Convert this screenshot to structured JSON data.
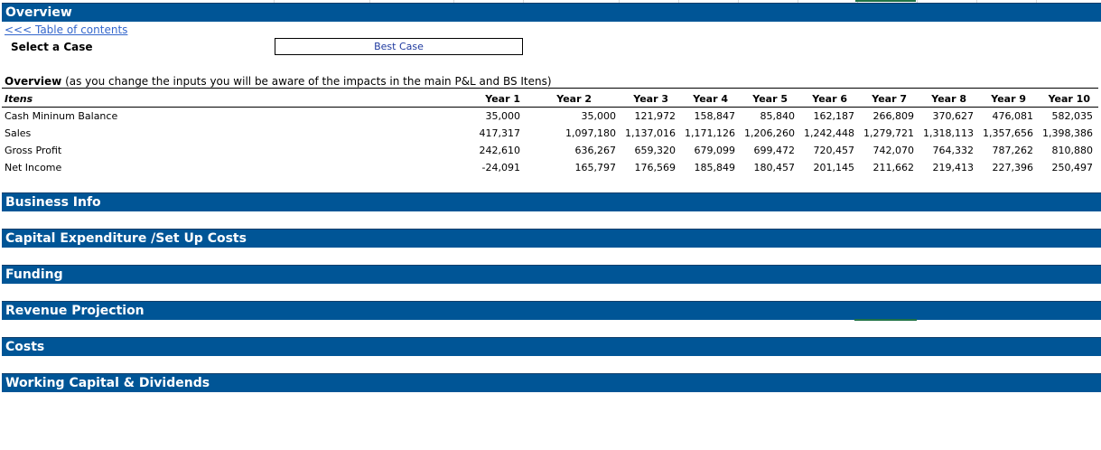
{
  "sections": {
    "overview": "Overview",
    "business_info": "Business Info",
    "capex": "Capital Expenditure /Set Up Costs",
    "funding": "Funding",
    "revenue": "Revenue Projection",
    "costs": "Costs",
    "working_capital": "Working Capital & Dividends"
  },
  "toc_link": "<<< Table of contents",
  "case": {
    "label": "Select a Case",
    "value": "Best Case"
  },
  "overview": {
    "title_bold": "Overview",
    "title_rest": " (as you change the inputs you will be aware of the impacts in the main P&L and BS Itens)",
    "items_header": "Itens",
    "years": [
      "Year 1",
      "Year 2",
      "Year 3",
      "Year 4",
      "Year 5",
      "Year 6",
      "Year 7",
      "Year 8",
      "Year 9",
      "Year 10"
    ],
    "rows": [
      {
        "label": "Cash Mininum Balance",
        "values": [
          "35,000",
          "35,000",
          "121,972",
          "158,847",
          "85,840",
          "162,187",
          "266,809",
          "370,627",
          "476,081",
          "582,035"
        ]
      },
      {
        "label": "Sales",
        "values": [
          "417,317",
          "1,097,180",
          "1,137,016",
          "1,171,126",
          "1,206,260",
          "1,242,448",
          "1,279,721",
          "1,318,113",
          "1,357,656",
          "1,398,386"
        ]
      },
      {
        "label": "Gross Profit",
        "values": [
          "242,610",
          "636,267",
          "659,320",
          "679,099",
          "699,472",
          "720,457",
          "742,070",
          "764,332",
          "787,262",
          "810,880"
        ]
      },
      {
        "label": "Net Income",
        "values": [
          "-24,091",
          "165,797",
          "176,569",
          "185,849",
          "180,457",
          "201,145",
          "211,662",
          "219,413",
          "227,396",
          "250,497"
        ]
      }
    ]
  },
  "colors": {
    "band": "#005596",
    "link": "#3366cc",
    "selection": "#217346"
  }
}
